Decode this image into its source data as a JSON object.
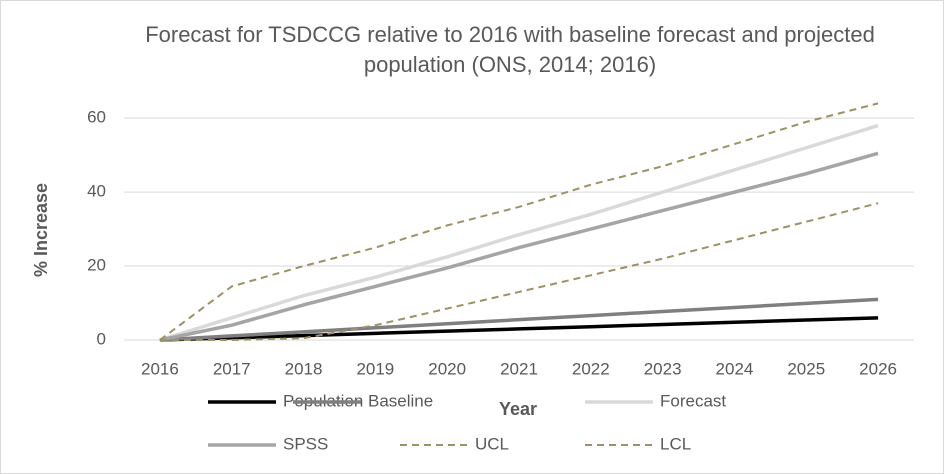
{
  "chart_data": {
    "type": "line",
    "title": "Forecast for TSDCCG relative to 2016 with baseline forecast and projected population (ONS, 2014; 2016)",
    "x_label": "Year",
    "y_label": "% Increase",
    "categories": [
      "2016",
      "2017",
      "2018",
      "2019",
      "2020",
      "2021",
      "2022",
      "2023",
      "2024",
      "2025",
      "2026"
    ],
    "series": [
      {
        "name": "Population",
        "color": "#000000",
        "values": [
          0,
          0.6,
          1.2,
          1.8,
          2.4,
          3.0,
          3.6,
          4.2,
          4.8,
          5.4,
          6.0
        ]
      },
      {
        "name": "Baseline",
        "color": "#7f7f7f",
        "values": [
          0,
          1.1,
          2.2,
          3.3,
          4.4,
          5.5,
          6.6,
          7.7,
          8.8,
          9.9,
          11
        ]
      },
      {
        "name": "Forecast",
        "color": "#d9d9d9",
        "values": [
          0,
          6,
          12,
          17,
          22.5,
          28.5,
          34,
          40,
          46,
          52,
          58
        ]
      },
      {
        "name": "SPSS",
        "color": "#a5a5a5",
        "values": [
          0,
          4,
          9.5,
          14.5,
          19.5,
          25,
          30,
          35,
          40,
          45,
          50.5
        ]
      },
      {
        "name": "UCL",
        "color": "#9e9162",
        "dashed": true,
        "values": [
          0,
          14.5,
          20,
          25,
          31,
          36,
          42,
          47,
          53,
          59,
          64
        ]
      },
      {
        "name": "LCL",
        "color": "#9e9162",
        "dashed": true,
        "values": [
          0,
          0,
          0.5,
          4,
          8.5,
          13,
          17.5,
          22,
          27,
          32,
          37
        ]
      }
    ],
    "ylim": [
      0,
      66
    ],
    "yticks": [
      0,
      20,
      40,
      60
    ],
    "grid": true,
    "legend": "bottom"
  }
}
